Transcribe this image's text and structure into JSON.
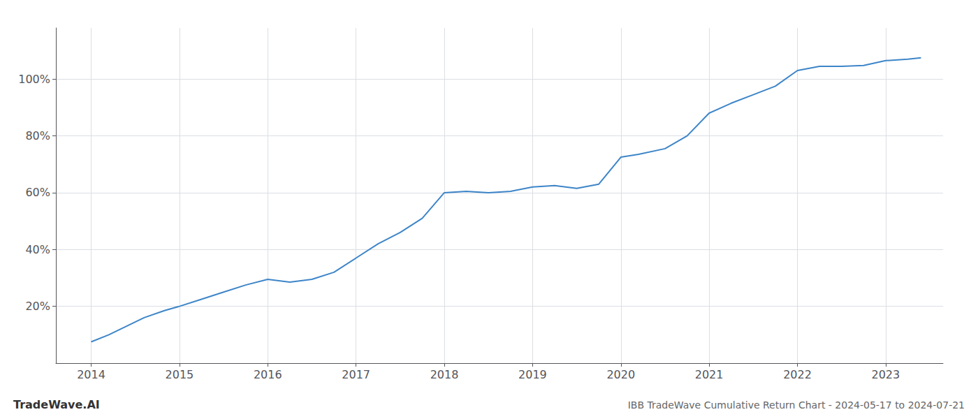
{
  "chart_data": {
    "type": "line",
    "title": "IBB TradeWave Cumulative Return Chart - 2024-05-17 to 2024-07-21",
    "annotations": [
      "TradeWave.AI"
    ],
    "color": "#3d85c8",
    "grid": true,
    "x": [
      2014.0,
      2014.2,
      2014.4,
      2014.6,
      2014.83,
      2015.0,
      2015.25,
      2015.5,
      2015.75,
      2016.0,
      2016.25,
      2016.5,
      2016.75,
      2017.0,
      2017.25,
      2017.5,
      2017.75,
      2018.0,
      2018.25,
      2018.5,
      2018.75,
      2019.0,
      2019.25,
      2019.5,
      2019.75,
      2020.0,
      2020.2,
      2020.5,
      2020.75,
      2021.0,
      2021.25,
      2021.5,
      2021.75,
      2022.0,
      2022.25,
      2022.5,
      2022.75,
      2023.0,
      2023.25,
      2023.4
    ],
    "values": [
      7.5,
      10.0,
      13.0,
      16.0,
      18.5,
      20.0,
      22.5,
      25.0,
      27.5,
      29.5,
      28.5,
      29.5,
      32.0,
      37.0,
      42.0,
      46.0,
      51.0,
      60.0,
      60.5,
      60.0,
      60.5,
      62.0,
      62.5,
      61.5,
      63.0,
      72.5,
      73.5,
      75.5,
      80.0,
      88.0,
      91.5,
      94.5,
      97.5,
      103.0,
      104.5,
      104.5,
      104.8,
      106.5,
      107.0,
      107.5
    ],
    "xlim": [
      2013.6,
      2023.65
    ],
    "ylim": [
      0,
      118
    ],
    "xticks": [
      2014,
      2015,
      2016,
      2017,
      2018,
      2019,
      2020,
      2021,
      2022,
      2023
    ],
    "yticks": [
      {
        "value": 20,
        "label": "20%"
      },
      {
        "value": 40,
        "label": "40%"
      },
      {
        "value": 60,
        "label": "60%"
      },
      {
        "value": 80,
        "label": "80%"
      },
      {
        "value": 100,
        "label": "100%"
      }
    ]
  }
}
